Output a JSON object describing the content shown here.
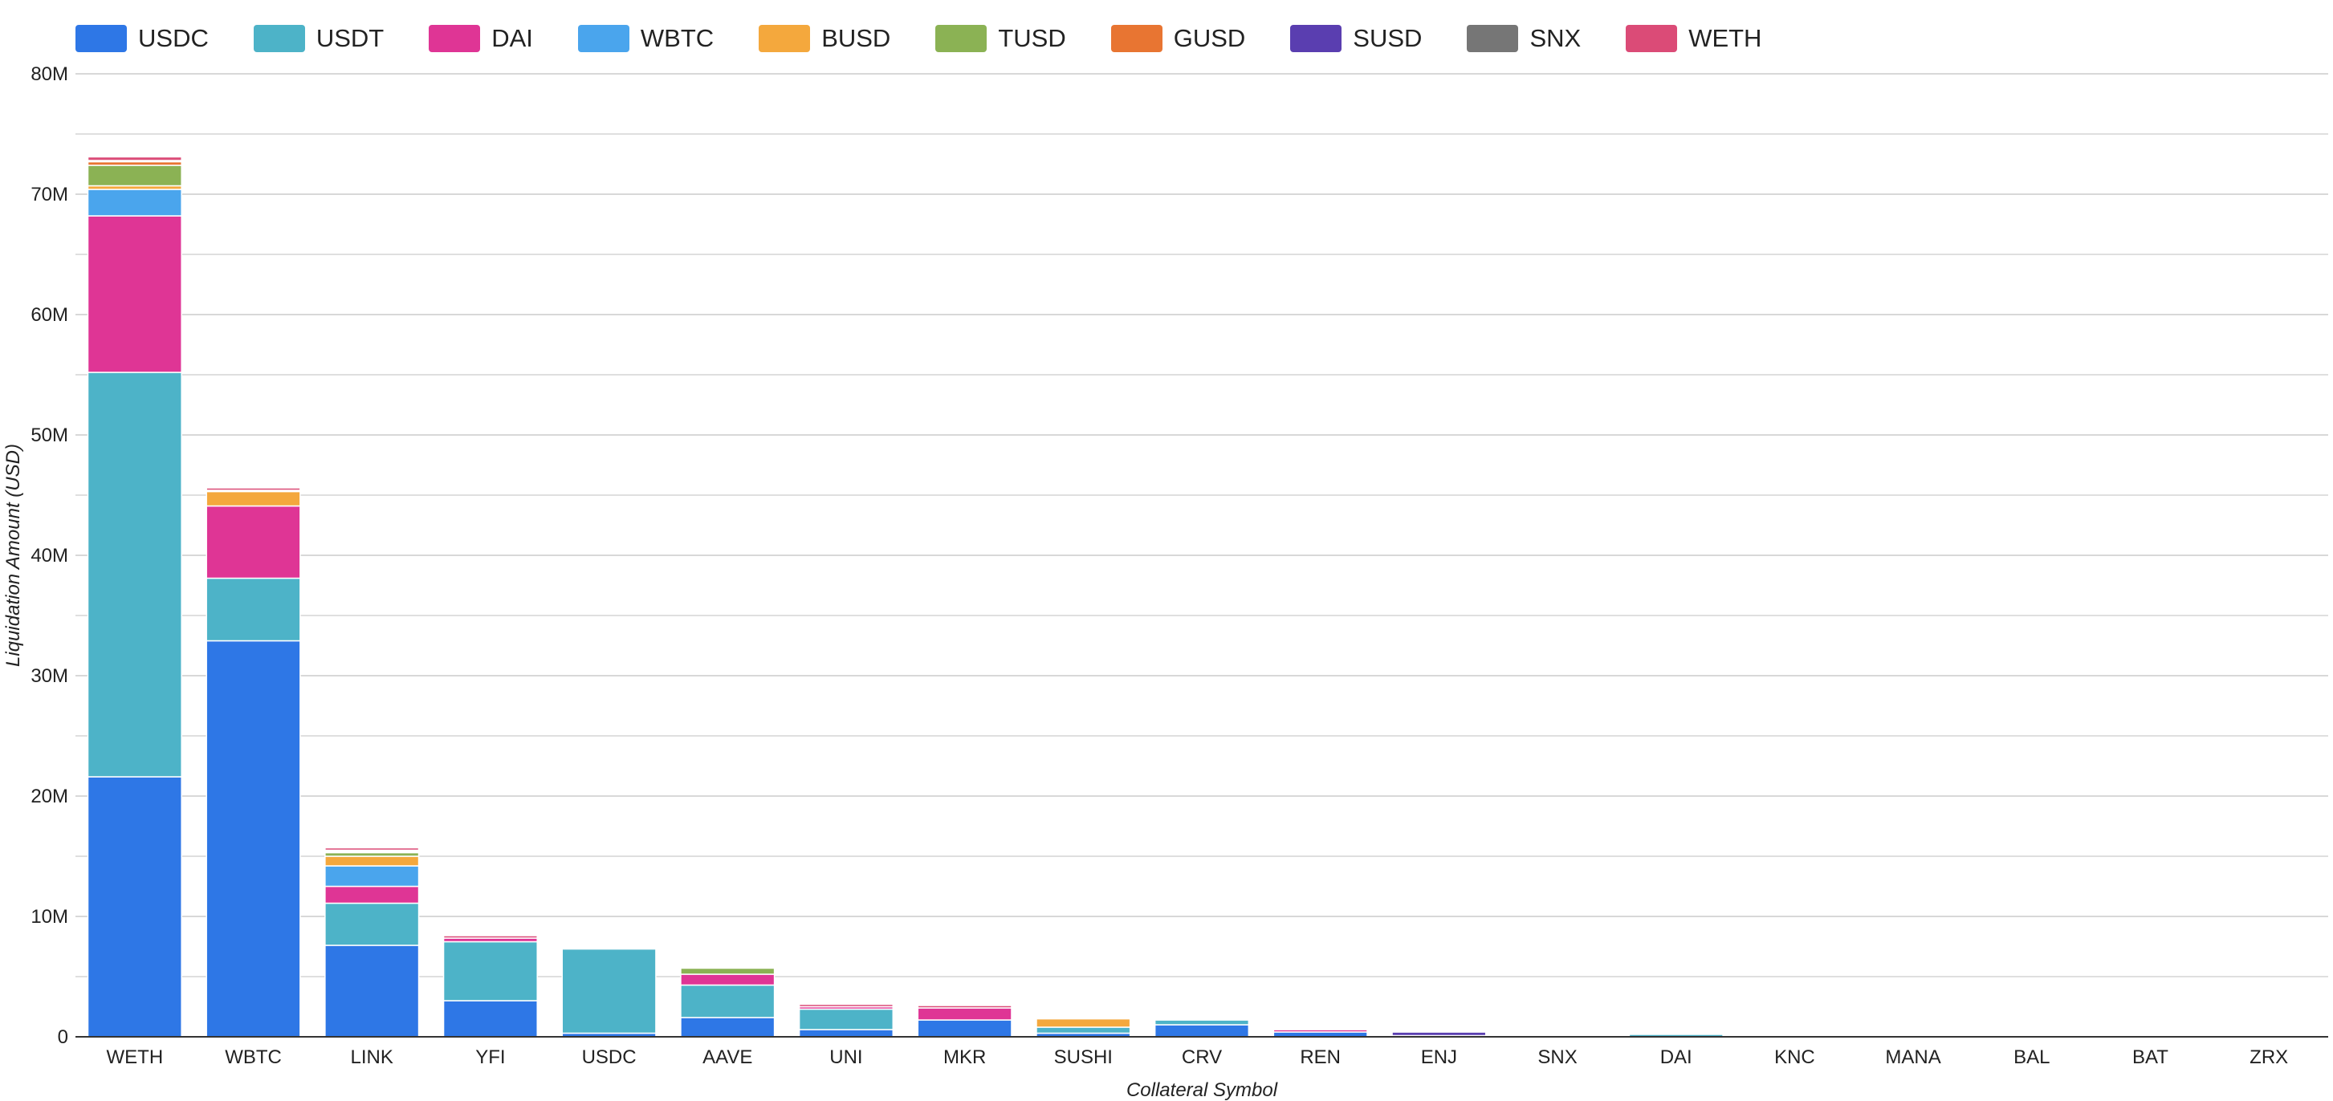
{
  "chart_data": {
    "type": "bar",
    "stacked": true,
    "title": "",
    "xlabel": "Collateral Symbol",
    "ylabel": "Liquidation Amount (USD)",
    "ylim": [
      0,
      80000000
    ],
    "yticks": [
      0,
      10000000,
      20000000,
      30000000,
      40000000,
      50000000,
      60000000,
      70000000,
      80000000
    ],
    "ytick_labels": [
      "0",
      "10M",
      "20M",
      "30M",
      "40M",
      "50M",
      "60M",
      "70M",
      "80M"
    ],
    "minor_gridlines": true,
    "legend_position": "top-left",
    "categories": [
      "WETH",
      "WBTC",
      "LINK",
      "YFI",
      "USDC",
      "AAVE",
      "UNI",
      "MKR",
      "SUSHI",
      "CRV",
      "REN",
      "ENJ",
      "SNX",
      "DAI",
      "KNC",
      "MANA",
      "BAL",
      "BAT",
      "ZRX"
    ],
    "series": [
      {
        "name": "USDC",
        "color": "#2e77e6",
        "values": [
          21600000,
          32900000,
          7600000,
          3000000,
          300000,
          1600000,
          600000,
          1400000,
          300000,
          1000000,
          400000,
          100000,
          100000,
          0,
          0,
          0,
          0,
          0,
          0
        ]
      },
      {
        "name": "USDT",
        "color": "#4db3c8",
        "values": [
          33600000,
          5200000,
          3500000,
          4900000,
          7000000,
          2700000,
          1700000,
          0,
          500000,
          400000,
          0,
          0,
          0,
          200000,
          50000,
          20000,
          10000,
          10000,
          10000
        ]
      },
      {
        "name": "DAI",
        "color": "#df3595",
        "values": [
          13000000,
          6000000,
          1400000,
          300000,
          0,
          900000,
          200000,
          1000000,
          0,
          0,
          200000,
          0,
          0,
          0,
          0,
          0,
          0,
          0,
          0
        ]
      },
      {
        "name": "WBTC",
        "color": "#4aa5ed",
        "values": [
          2200000,
          0,
          1700000,
          0,
          100000,
          0,
          0,
          0,
          0,
          100000,
          0,
          0,
          0,
          0,
          0,
          0,
          0,
          0,
          0
        ]
      },
      {
        "name": "BUSD",
        "color": "#f4a83d",
        "values": [
          300000,
          1200000,
          800000,
          0,
          0,
          0,
          0,
          0,
          700000,
          0,
          0,
          0,
          0,
          0,
          0,
          0,
          0,
          0,
          0
        ]
      },
      {
        "name": "TUSD",
        "color": "#8bb254",
        "values": [
          1700000,
          0,
          300000,
          0,
          0,
          500000,
          0,
          0,
          100000,
          0,
          0,
          0,
          0,
          0,
          0,
          0,
          0,
          0,
          0
        ]
      },
      {
        "name": "GUSD",
        "color": "#e87532",
        "values": [
          300000,
          0,
          100000,
          0,
          0,
          0,
          0,
          0,
          0,
          0,
          0,
          0,
          0,
          0,
          0,
          0,
          0,
          0,
          0
        ]
      },
      {
        "name": "SUSD",
        "color": "#5a3eb0",
        "values": [
          0,
          0,
          0,
          0,
          0,
          0,
          0,
          0,
          0,
          0,
          0,
          300000,
          100000,
          0,
          0,
          0,
          0,
          0,
          0
        ]
      },
      {
        "name": "SNX",
        "color": "#767676",
        "values": [
          100000,
          100000,
          100000,
          0,
          0,
          0,
          0,
          0,
          100000,
          100000,
          0,
          0,
          0,
          0,
          0,
          0,
          0,
          0,
          0
        ]
      },
      {
        "name": "WETH",
        "color": "#db4b77",
        "values": [
          300000,
          200000,
          200000,
          200000,
          0,
          0,
          200000,
          200000,
          100000,
          0,
          100000,
          100000,
          100000,
          0,
          0,
          0,
          0,
          0,
          0
        ]
      }
    ]
  }
}
